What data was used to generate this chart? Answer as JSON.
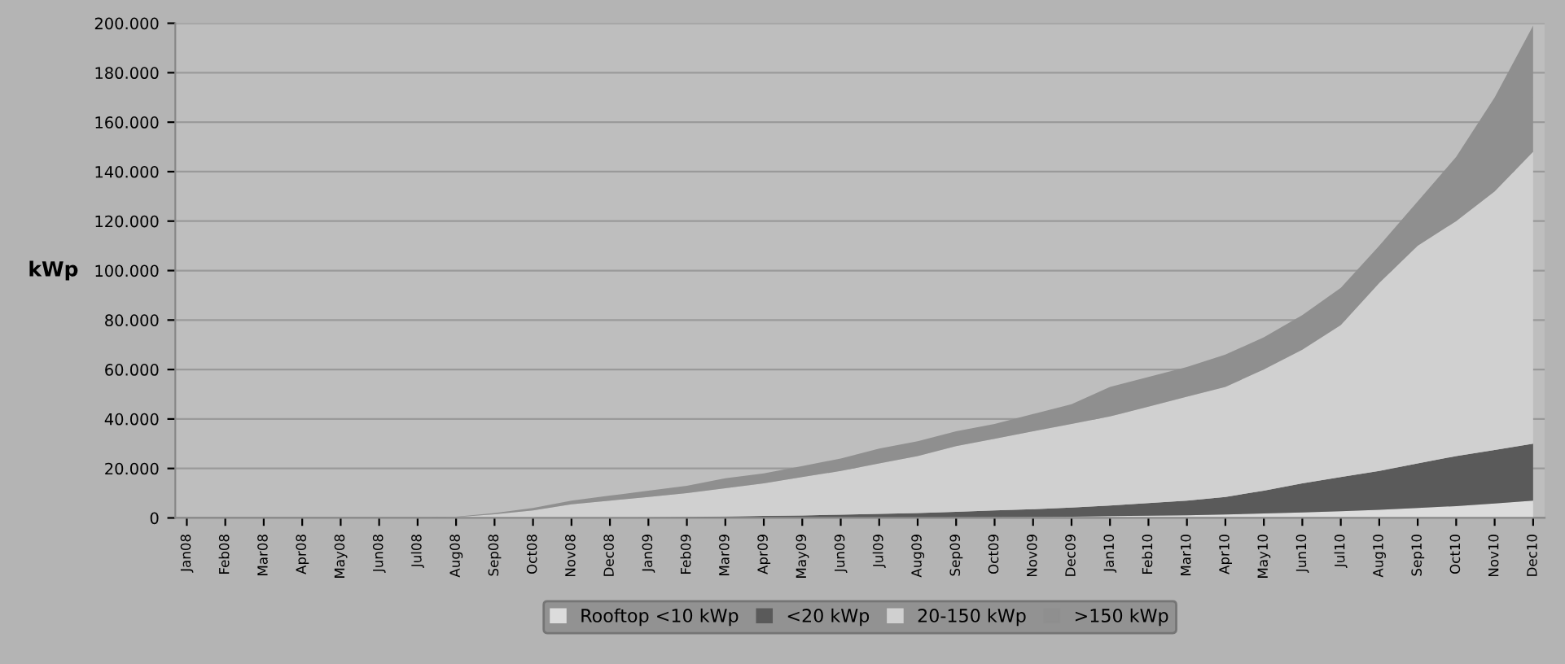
{
  "chart_data": {
    "type": "area",
    "stacked": true,
    "ylabel": "kWp",
    "categories": [
      "Jan08",
      "Feb08",
      "Mar08",
      "Apr08",
      "May08",
      "Jun08",
      "Jul08",
      "Aug08",
      "Sep08",
      "Oct08",
      "Nov08",
      "Dec08",
      "Jan09",
      "Feb09",
      "Mar09",
      "Apr09",
      "May09",
      "Jun09",
      "Jul09",
      "Aug09",
      "Sep09",
      "Oct09",
      "Nov09",
      "Dec09",
      "Jan10",
      "Feb10",
      "Mar10",
      "Apr10",
      "May10",
      "Jun10",
      "Jul10",
      "Aug10",
      "Sep10",
      "Oct10",
      "Nov10",
      "Dec10"
    ],
    "series": [
      {
        "name": "Rooftop <10 kWp",
        "color": "#dcdcdc",
        "values": [
          0,
          0,
          0,
          0,
          0,
          0,
          0,
          0,
          0,
          0,
          0,
          0,
          0,
          0,
          0,
          0,
          0,
          0,
          0,
          0,
          200,
          300,
          400,
          500,
          700,
          900,
          1100,
          1400,
          1800,
          2200,
          2700,
          3300,
          4000,
          4800,
          5800,
          7000
        ]
      },
      {
        "name": "<20 kWp",
        "color": "#5a5a5a",
        "values": [
          0,
          0,
          0,
          0,
          0,
          0,
          0,
          0,
          0,
          0,
          0,
          0,
          200,
          400,
          600,
          800,
          1000,
          1300,
          1600,
          2000,
          2300,
          2700,
          3100,
          3700,
          4300,
          5100,
          5900,
          7100,
          9200,
          11800,
          13800,
          15700,
          18000,
          20200,
          21700,
          23000
        ]
      },
      {
        "name": "20-150 kWp",
        "color": "#d0d0d0",
        "values": [
          0,
          0,
          0,
          0,
          0,
          0,
          0,
          300,
          1500,
          3000,
          5500,
          7000,
          8300,
          9600,
          11400,
          13200,
          15500,
          17700,
          20400,
          23000,
          26500,
          29000,
          31500,
          33800,
          36000,
          39000,
          42000,
          44500,
          49000,
          54000,
          61500,
          76000,
          88000,
          95000,
          104500,
          118000
        ]
      },
      {
        "name": ">150 kWp",
        "color": "#8f8f8f",
        "values": [
          0,
          0,
          0,
          0,
          0,
          0,
          0,
          200,
          500,
          1000,
          1500,
          2000,
          2500,
          3000,
          4000,
          4000,
          4500,
          5000,
          6000,
          6000,
          6000,
          6000,
          7000,
          8000,
          12000,
          12000,
          12000,
          13000,
          13000,
          14000,
          15000,
          15000,
          18000,
          26000,
          38000,
          51000
        ]
      }
    ],
    "ylim": [
      0,
      200000
    ],
    "yticks": [
      {
        "value": 0,
        "label": "0"
      },
      {
        "value": 20000,
        "label": "20.000"
      },
      {
        "value": 40000,
        "label": "40.000"
      },
      {
        "value": 60000,
        "label": "60.000"
      },
      {
        "value": 80000,
        "label": "80.000"
      },
      {
        "value": 100000,
        "label": "100.000"
      },
      {
        "value": 120000,
        "label": "120.000"
      },
      {
        "value": 140000,
        "label": "140.000"
      },
      {
        "value": 160000,
        "label": "160.000"
      },
      {
        "value": 180000,
        "label": "180.000"
      },
      {
        "value": 200000,
        "label": "200.000"
      }
    ],
    "grid": "y",
    "legend": "bottom"
  }
}
